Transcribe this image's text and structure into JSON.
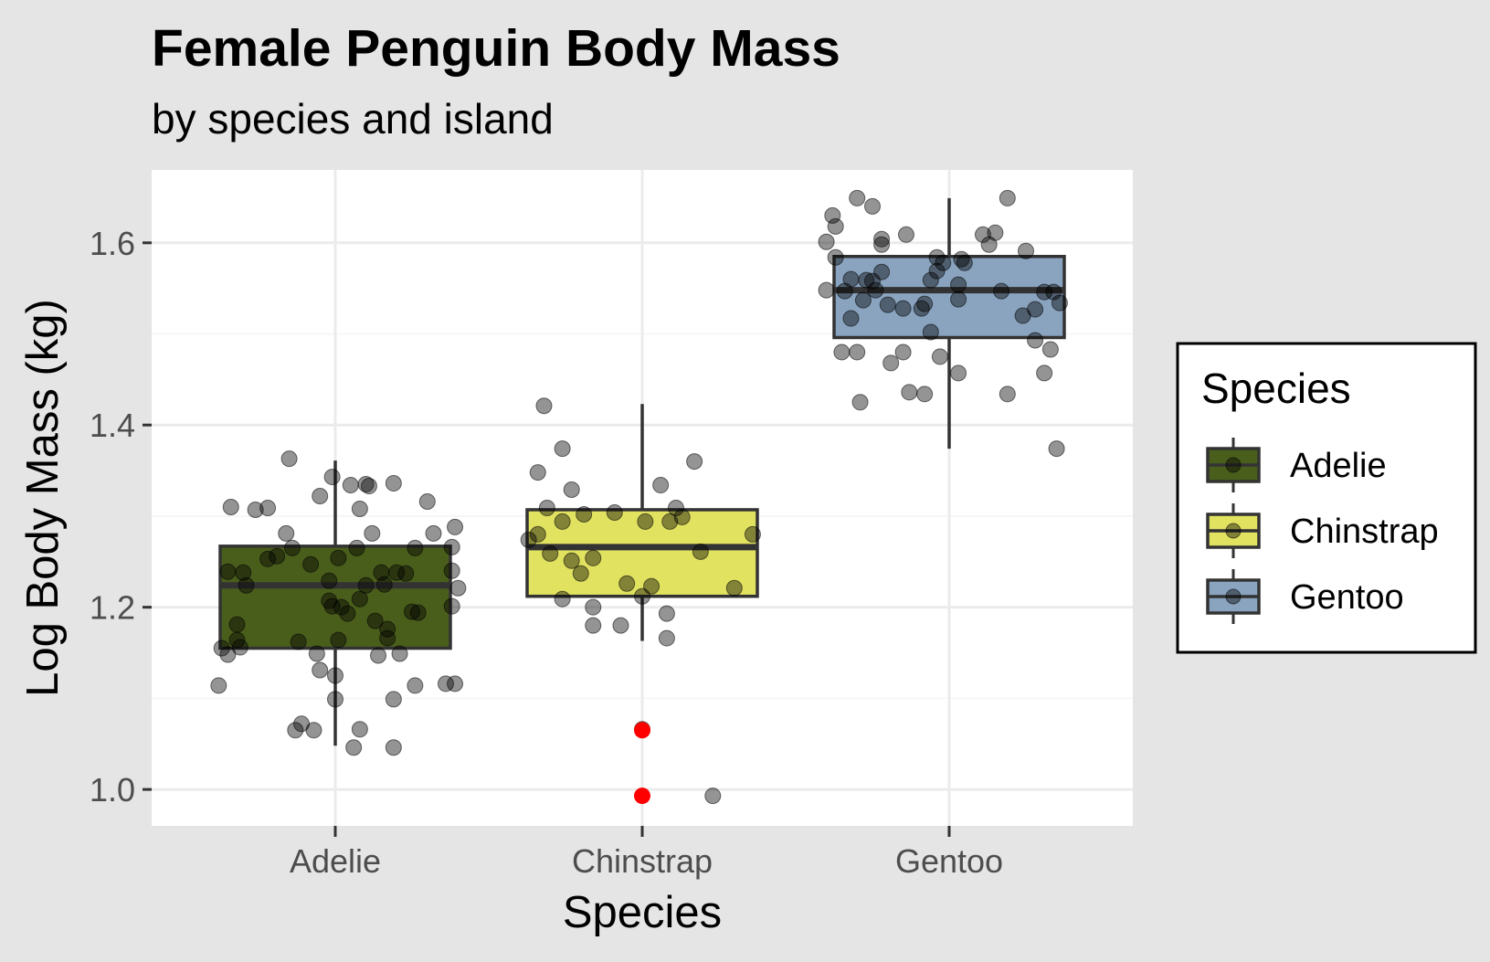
{
  "chart_data": {
    "type": "boxplot",
    "title": "Female Penguin Body Mass",
    "subtitle": "by species and island",
    "xlabel": "Species",
    "ylabel": "Log Body Mass (kg)",
    "ylim": [
      0.96,
      1.68
    ],
    "yticks": [
      "1.0",
      "1.2",
      "1.4",
      "1.6"
    ],
    "ytick_values": [
      1.0,
      1.2,
      1.4,
      1.6
    ],
    "categories": [
      "Adelie",
      "Chinstrap",
      "Gentoo"
    ],
    "grid": true,
    "legend": {
      "title": "Species",
      "position": "right",
      "entries": [
        "Adelie",
        "Chinstrap",
        "Gentoo"
      ]
    },
    "colors": {
      "background": "#e5e5e5",
      "panel": "#ffffff",
      "grid": "#ebebeb",
      "Adelie": "#4a5e1c",
      "Chinstrap": "#e2e261",
      "Gentoo": "#8aa4c0",
      "outlier": "#ff0000"
    },
    "boxes": [
      {
        "category": "Adelie",
        "whisker_low": 1.048,
        "q1": 1.155,
        "median": 1.224,
        "q3": 1.267,
        "whisker_high": 1.361
      },
      {
        "category": "Chinstrap",
        "whisker_low": 1.163,
        "q1": 1.212,
        "median": 1.266,
        "q3": 1.307,
        "whisker_high": 1.423
      },
      {
        "category": "Gentoo",
        "whisker_low": 1.374,
        "q1": 1.496,
        "median": 1.548,
        "q3": 1.585,
        "whisker_high": 1.649
      }
    ],
    "outliers": [
      {
        "category": "Chinstrap",
        "y": 1.065
      },
      {
        "category": "Chinstrap",
        "y": 0.993
      }
    ],
    "points": [
      {
        "category": "Adelie",
        "x_jitter": -0.38,
        "y": 1.114
      },
      {
        "category": "Adelie",
        "x_jitter": -0.37,
        "y": 1.155
      },
      {
        "category": "Adelie",
        "x_jitter": -0.35,
        "y": 1.148
      },
      {
        "category": "Adelie",
        "x_jitter": -0.35,
        "y": 1.239
      },
      {
        "category": "Adelie",
        "x_jitter": -0.32,
        "y": 1.181
      },
      {
        "category": "Adelie",
        "x_jitter": -0.32,
        "y": 1.164
      },
      {
        "category": "Adelie",
        "x_jitter": -0.31,
        "y": 1.156
      },
      {
        "category": "Adelie",
        "x_jitter": -0.3,
        "y": 1.238
      },
      {
        "category": "Adelie",
        "x_jitter": -0.29,
        "y": 1.224
      },
      {
        "category": "Adelie",
        "x_jitter": -0.34,
        "y": 1.31
      },
      {
        "category": "Adelie",
        "x_jitter": -0.26,
        "y": 1.307
      },
      {
        "category": "Adelie",
        "x_jitter": -0.22,
        "y": 1.309
      },
      {
        "category": "Adelie",
        "x_jitter": -0.22,
        "y": 1.253
      },
      {
        "category": "Adelie",
        "x_jitter": -0.19,
        "y": 1.256
      },
      {
        "category": "Adelie",
        "x_jitter": -0.16,
        "y": 1.281
      },
      {
        "category": "Adelie",
        "x_jitter": -0.14,
        "y": 1.265
      },
      {
        "category": "Adelie",
        "x_jitter": -0.15,
        "y": 1.363
      },
      {
        "category": "Adelie",
        "x_jitter": -0.12,
        "y": 1.162
      },
      {
        "category": "Adelie",
        "x_jitter": -0.13,
        "y": 1.065
      },
      {
        "category": "Adelie",
        "x_jitter": -0.11,
        "y": 1.072
      },
      {
        "category": "Adelie",
        "x_jitter": -0.07,
        "y": 1.065
      },
      {
        "category": "Adelie",
        "x_jitter": -0.08,
        "y": 1.247
      },
      {
        "category": "Adelie",
        "x_jitter": -0.06,
        "y": 1.149
      },
      {
        "category": "Adelie",
        "x_jitter": -0.05,
        "y": 1.131
      },
      {
        "category": "Adelie",
        "x_jitter": -0.05,
        "y": 1.322
      },
      {
        "category": "Adelie",
        "x_jitter": -0.02,
        "y": 1.229
      },
      {
        "category": "Adelie",
        "x_jitter": -0.02,
        "y": 1.207
      },
      {
        "category": "Adelie",
        "x_jitter": -0.01,
        "y": 1.201
      },
      {
        "category": "Adelie",
        "x_jitter": 0.0,
        "y": 1.125
      },
      {
        "category": "Adelie",
        "x_jitter": 0.0,
        "y": 1.099
      },
      {
        "category": "Adelie",
        "x_jitter": -0.01,
        "y": 1.343
      },
      {
        "category": "Adelie",
        "x_jitter": 0.01,
        "y": 1.254
      },
      {
        "category": "Adelie",
        "x_jitter": 0.01,
        "y": 1.164
      },
      {
        "category": "Adelie",
        "x_jitter": 0.02,
        "y": 1.2
      },
      {
        "category": "Adelie",
        "x_jitter": 0.04,
        "y": 1.193
      },
      {
        "category": "Adelie",
        "x_jitter": 0.05,
        "y": 1.334
      },
      {
        "category": "Adelie",
        "x_jitter": 0.06,
        "y": 1.046
      },
      {
        "category": "Adelie",
        "x_jitter": 0.08,
        "y": 1.066
      },
      {
        "category": "Adelie",
        "x_jitter": 0.07,
        "y": 1.265
      },
      {
        "category": "Adelie",
        "x_jitter": 0.08,
        "y": 1.209
      },
      {
        "category": "Adelie",
        "x_jitter": 0.08,
        "y": 1.308
      },
      {
        "category": "Adelie",
        "x_jitter": 0.1,
        "y": 1.335
      },
      {
        "category": "Adelie",
        "x_jitter": 0.1,
        "y": 1.224
      },
      {
        "category": "Adelie",
        "x_jitter": 0.11,
        "y": 1.333
      },
      {
        "category": "Adelie",
        "x_jitter": 0.12,
        "y": 1.281
      },
      {
        "category": "Adelie",
        "x_jitter": 0.13,
        "y": 1.185
      },
      {
        "category": "Adelie",
        "x_jitter": 0.14,
        "y": 1.147
      },
      {
        "category": "Adelie",
        "x_jitter": 0.15,
        "y": 1.238
      },
      {
        "category": "Adelie",
        "x_jitter": 0.16,
        "y": 1.225
      },
      {
        "category": "Adelie",
        "x_jitter": 0.17,
        "y": 1.176
      },
      {
        "category": "Adelie",
        "x_jitter": 0.17,
        "y": 1.166
      },
      {
        "category": "Adelie",
        "x_jitter": 0.19,
        "y": 1.046
      },
      {
        "category": "Adelie",
        "x_jitter": 0.19,
        "y": 1.099
      },
      {
        "category": "Adelie",
        "x_jitter": 0.19,
        "y": 1.336
      },
      {
        "category": "Adelie",
        "x_jitter": 0.2,
        "y": 1.238
      },
      {
        "category": "Adelie",
        "x_jitter": 0.21,
        "y": 1.149
      },
      {
        "category": "Adelie",
        "x_jitter": 0.23,
        "y": 1.237
      },
      {
        "category": "Adelie",
        "x_jitter": 0.25,
        "y": 1.195
      },
      {
        "category": "Adelie",
        "x_jitter": 0.26,
        "y": 1.114
      },
      {
        "category": "Adelie",
        "x_jitter": 0.26,
        "y": 1.265
      },
      {
        "category": "Adelie",
        "x_jitter": 0.27,
        "y": 1.194
      },
      {
        "category": "Adelie",
        "x_jitter": 0.3,
        "y": 1.316
      },
      {
        "category": "Adelie",
        "x_jitter": 0.32,
        "y": 1.281
      },
      {
        "category": "Adelie",
        "x_jitter": 0.36,
        "y": 1.116
      },
      {
        "category": "Adelie",
        "x_jitter": 0.38,
        "y": 1.201
      },
      {
        "category": "Adelie",
        "x_jitter": 0.38,
        "y": 1.24
      },
      {
        "category": "Adelie",
        "x_jitter": 0.38,
        "y": 1.266
      },
      {
        "category": "Adelie",
        "x_jitter": 0.39,
        "y": 1.288
      },
      {
        "category": "Adelie",
        "x_jitter": 0.39,
        "y": 1.116
      },
      {
        "category": "Adelie",
        "x_jitter": 0.4,
        "y": 1.221
      },
      {
        "category": "Chinstrap",
        "x_jitter": -0.37,
        "y": 1.274
      },
      {
        "category": "Chinstrap",
        "x_jitter": -0.34,
        "y": 1.28
      },
      {
        "category": "Chinstrap",
        "x_jitter": -0.34,
        "y": 1.348
      },
      {
        "category": "Chinstrap",
        "x_jitter": -0.32,
        "y": 1.421
      },
      {
        "category": "Chinstrap",
        "x_jitter": -0.31,
        "y": 1.309
      },
      {
        "category": "Chinstrap",
        "x_jitter": -0.3,
        "y": 1.259
      },
      {
        "category": "Chinstrap",
        "x_jitter": -0.26,
        "y": 1.209
      },
      {
        "category": "Chinstrap",
        "x_jitter": -0.26,
        "y": 1.294
      },
      {
        "category": "Chinstrap",
        "x_jitter": -0.26,
        "y": 1.374
      },
      {
        "category": "Chinstrap",
        "x_jitter": -0.23,
        "y": 1.251
      },
      {
        "category": "Chinstrap",
        "x_jitter": -0.23,
        "y": 1.329
      },
      {
        "category": "Chinstrap",
        "x_jitter": -0.2,
        "y": 1.237
      },
      {
        "category": "Chinstrap",
        "x_jitter": -0.19,
        "y": 1.302
      },
      {
        "category": "Chinstrap",
        "x_jitter": -0.16,
        "y": 1.2
      },
      {
        "category": "Chinstrap",
        "x_jitter": -0.16,
        "y": 1.18
      },
      {
        "category": "Chinstrap",
        "x_jitter": -0.16,
        "y": 1.254
      },
      {
        "category": "Chinstrap",
        "x_jitter": -0.09,
        "y": 1.304
      },
      {
        "category": "Chinstrap",
        "x_jitter": -0.07,
        "y": 1.18
      },
      {
        "category": "Chinstrap",
        "x_jitter": -0.05,
        "y": 1.226
      },
      {
        "category": "Chinstrap",
        "x_jitter": 0.0,
        "y": 1.212
      },
      {
        "category": "Chinstrap",
        "x_jitter": 0.0,
        "y": 1.066
      },
      {
        "category": "Chinstrap",
        "x_jitter": 0.01,
        "y": 1.294
      },
      {
        "category": "Chinstrap",
        "x_jitter": 0.03,
        "y": 1.223
      },
      {
        "category": "Chinstrap",
        "x_jitter": 0.06,
        "y": 1.334
      },
      {
        "category": "Chinstrap",
        "x_jitter": 0.08,
        "y": 1.193
      },
      {
        "category": "Chinstrap",
        "x_jitter": 0.08,
        "y": 1.166
      },
      {
        "category": "Chinstrap",
        "x_jitter": 0.09,
        "y": 1.294
      },
      {
        "category": "Chinstrap",
        "x_jitter": 0.11,
        "y": 1.309
      },
      {
        "category": "Chinstrap",
        "x_jitter": 0.13,
        "y": 1.299
      },
      {
        "category": "Chinstrap",
        "x_jitter": 0.17,
        "y": 1.36
      },
      {
        "category": "Chinstrap",
        "x_jitter": 0.19,
        "y": 1.261
      },
      {
        "category": "Chinstrap",
        "x_jitter": 0.23,
        "y": 0.993
      },
      {
        "category": "Chinstrap",
        "x_jitter": 0.3,
        "y": 1.221
      },
      {
        "category": "Chinstrap",
        "x_jitter": 0.36,
        "y": 1.28
      },
      {
        "category": "Gentoo",
        "x_jitter": -0.4,
        "y": 1.601
      },
      {
        "category": "Gentoo",
        "x_jitter": -0.4,
        "y": 1.548
      },
      {
        "category": "Gentoo",
        "x_jitter": -0.38,
        "y": 1.63
      },
      {
        "category": "Gentoo",
        "x_jitter": -0.37,
        "y": 1.618
      },
      {
        "category": "Gentoo",
        "x_jitter": -0.37,
        "y": 1.584
      },
      {
        "category": "Gentoo",
        "x_jitter": -0.35,
        "y": 1.48
      },
      {
        "category": "Gentoo",
        "x_jitter": -0.34,
        "y": 1.547
      },
      {
        "category": "Gentoo",
        "x_jitter": -0.32,
        "y": 1.517
      },
      {
        "category": "Gentoo",
        "x_jitter": -0.32,
        "y": 1.56
      },
      {
        "category": "Gentoo",
        "x_jitter": -0.3,
        "y": 1.48
      },
      {
        "category": "Gentoo",
        "x_jitter": -0.29,
        "y": 1.425
      },
      {
        "category": "Gentoo",
        "x_jitter": -0.3,
        "y": 1.649
      },
      {
        "category": "Gentoo",
        "x_jitter": -0.28,
        "y": 1.537
      },
      {
        "category": "Gentoo",
        "x_jitter": -0.27,
        "y": 1.559
      },
      {
        "category": "Gentoo",
        "x_jitter": -0.25,
        "y": 1.558
      },
      {
        "category": "Gentoo",
        "x_jitter": -0.25,
        "y": 1.64
      },
      {
        "category": "Gentoo",
        "x_jitter": -0.24,
        "y": 1.548
      },
      {
        "category": "Gentoo",
        "x_jitter": -0.22,
        "y": 1.598
      },
      {
        "category": "Gentoo",
        "x_jitter": -0.22,
        "y": 1.568
      },
      {
        "category": "Gentoo",
        "x_jitter": -0.22,
        "y": 1.604
      },
      {
        "category": "Gentoo",
        "x_jitter": -0.2,
        "y": 1.532
      },
      {
        "category": "Gentoo",
        "x_jitter": -0.19,
        "y": 1.468
      },
      {
        "category": "Gentoo",
        "x_jitter": -0.15,
        "y": 1.48
      },
      {
        "category": "Gentoo",
        "x_jitter": -0.15,
        "y": 1.528
      },
      {
        "category": "Gentoo",
        "x_jitter": -0.14,
        "y": 1.609
      },
      {
        "category": "Gentoo",
        "x_jitter": -0.13,
        "y": 1.436
      },
      {
        "category": "Gentoo",
        "x_jitter": -0.09,
        "y": 1.528
      },
      {
        "category": "Gentoo",
        "x_jitter": -0.08,
        "y": 1.533
      },
      {
        "category": "Gentoo",
        "x_jitter": -0.08,
        "y": 1.434
      },
      {
        "category": "Gentoo",
        "x_jitter": -0.06,
        "y": 1.502
      },
      {
        "category": "Gentoo",
        "x_jitter": -0.06,
        "y": 1.559
      },
      {
        "category": "Gentoo",
        "x_jitter": -0.04,
        "y": 1.569
      },
      {
        "category": "Gentoo",
        "x_jitter": -0.04,
        "y": 1.584
      },
      {
        "category": "Gentoo",
        "x_jitter": -0.03,
        "y": 1.475
      },
      {
        "category": "Gentoo",
        "x_jitter": -0.02,
        "y": 1.578
      },
      {
        "category": "Gentoo",
        "x_jitter": 0.03,
        "y": 1.554
      },
      {
        "category": "Gentoo",
        "x_jitter": 0.03,
        "y": 1.457
      },
      {
        "category": "Gentoo",
        "x_jitter": 0.03,
        "y": 1.538
      },
      {
        "category": "Gentoo",
        "x_jitter": 0.04,
        "y": 1.582
      },
      {
        "category": "Gentoo",
        "x_jitter": 0.05,
        "y": 1.578
      },
      {
        "category": "Gentoo",
        "x_jitter": 0.11,
        "y": 1.609
      },
      {
        "category": "Gentoo",
        "x_jitter": 0.13,
        "y": 1.598
      },
      {
        "category": "Gentoo",
        "x_jitter": 0.15,
        "y": 1.611
      },
      {
        "category": "Gentoo",
        "x_jitter": 0.17,
        "y": 1.547
      },
      {
        "category": "Gentoo",
        "x_jitter": 0.19,
        "y": 1.649
      },
      {
        "category": "Gentoo",
        "x_jitter": 0.19,
        "y": 1.434
      },
      {
        "category": "Gentoo",
        "x_jitter": 0.24,
        "y": 1.52
      },
      {
        "category": "Gentoo",
        "x_jitter": 0.25,
        "y": 1.591
      },
      {
        "category": "Gentoo",
        "x_jitter": 0.28,
        "y": 1.527
      },
      {
        "category": "Gentoo",
        "x_jitter": 0.28,
        "y": 1.493
      },
      {
        "category": "Gentoo",
        "x_jitter": 0.31,
        "y": 1.546
      },
      {
        "category": "Gentoo",
        "x_jitter": 0.31,
        "y": 1.457
      },
      {
        "category": "Gentoo",
        "x_jitter": 0.33,
        "y": 1.483
      },
      {
        "category": "Gentoo",
        "x_jitter": 0.34,
        "y": 1.546
      },
      {
        "category": "Gentoo",
        "x_jitter": 0.35,
        "y": 1.374
      },
      {
        "category": "Gentoo",
        "x_jitter": 0.36,
        "y": 1.534
      }
    ]
  }
}
